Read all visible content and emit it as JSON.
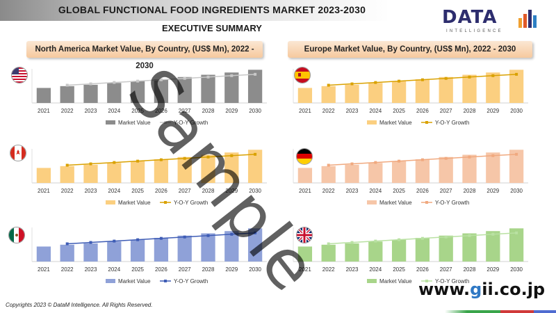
{
  "header": {
    "title": "GLOBAL FUNCTIONAL FOOD INGREDIENTS MARKET 2023-2030",
    "subtitle": "EXECUTIVE SUMMARY",
    "logo_text": "DATA",
    "logo_sub": "INTELLIGENCE",
    "left_panel_title": "North America Market Value, By Country, (US$ Mn), 2022 - 2030",
    "right_panel_title": "Europe Market Value, By Country, (US$ Mn), 2022 - 2030"
  },
  "watermark": "Sample",
  "site": {
    "prefix": "www.",
    "g": "g",
    "rest": "ii.co.jp"
  },
  "footer": {
    "copyright": "Copyrights 2023 © DataM Intelligence. All Rights Reserved."
  },
  "colors": {
    "us": {
      "bar": "#8c8c8c",
      "line": "#c8c8c8"
    },
    "ca": {
      "bar": "#fbcf80",
      "line": "#d9a100"
    },
    "mx": {
      "bar": "#8fa1d8",
      "line": "#3e5cb5"
    },
    "es": {
      "bar": "#fbcf80",
      "line": "#d9a100"
    },
    "de": {
      "bar": "#f6c6a8",
      "line": "#f0a97f"
    },
    "uk": {
      "bar": "#a8d58a",
      "line": "#b9e1a2"
    }
  },
  "chart_data": [
    {
      "id": "us",
      "flag": "usa-flag-icon",
      "type": "bar",
      "categories": [
        "2021",
        "2022",
        "2023",
        "2024",
        "2025",
        "2026",
        "2027",
        "2028",
        "2029",
        "2030"
      ],
      "series": [
        {
          "name": "Market Value",
          "type": "bar",
          "values": [
            33,
            37,
            40,
            44,
            48,
            52,
            57,
            62,
            67,
            73
          ]
        },
        {
          "name": "Y-O-Y Growth",
          "type": "line",
          "values": [
            null,
            0.52,
            0.56,
            0.6,
            0.64,
            0.68,
            0.72,
            0.76,
            0.8,
            0.84
          ]
        }
      ],
      "legend": [
        "Market Value",
        "Y-O-Y Growth"
      ]
    },
    {
      "id": "es",
      "flag": "spain-flag-icon",
      "type": "bar",
      "categories": [
        "2021",
        "2022",
        "2023",
        "2024",
        "2025",
        "2026",
        "2027",
        "2028",
        "2029",
        "2030"
      ],
      "series": [
        {
          "name": "Market Value",
          "type": "bar",
          "values": [
            33,
            37,
            40,
            44,
            48,
            52,
            57,
            62,
            67,
            73
          ]
        },
        {
          "name": "Y-O-Y Growth",
          "type": "line",
          "values": [
            null,
            0.52,
            0.56,
            0.6,
            0.64,
            0.68,
            0.72,
            0.76,
            0.8,
            0.84
          ]
        }
      ],
      "legend": [
        "Market Value",
        "Y-O-Y Growth"
      ]
    },
    {
      "id": "ca",
      "flag": "canada-flag-icon",
      "type": "bar",
      "categories": [
        "2021",
        "2022",
        "2023",
        "2024",
        "2025",
        "2026",
        "2027",
        "2028",
        "2029",
        "2030"
      ],
      "series": [
        {
          "name": "Market Value",
          "type": "bar",
          "values": [
            33,
            37,
            40,
            44,
            48,
            52,
            57,
            62,
            67,
            73
          ]
        },
        {
          "name": "Y-O-Y Growth",
          "type": "line",
          "values": [
            null,
            0.52,
            0.56,
            0.6,
            0.64,
            0.68,
            0.72,
            0.76,
            0.8,
            0.84
          ]
        }
      ],
      "legend": [
        "Market Value",
        "Y-O-Y Growth"
      ]
    },
    {
      "id": "de",
      "flag": "germany-flag-icon",
      "type": "bar",
      "categories": [
        "2021",
        "2022",
        "2023",
        "2024",
        "2025",
        "2026",
        "2027",
        "2028",
        "2029",
        "2030"
      ],
      "series": [
        {
          "name": "Market Value",
          "type": "bar",
          "values": [
            33,
            37,
            40,
            44,
            48,
            52,
            57,
            62,
            67,
            73
          ]
        },
        {
          "name": "Y-O-Y Growth",
          "type": "line",
          "values": [
            null,
            0.52,
            0.56,
            0.6,
            0.64,
            0.68,
            0.72,
            0.76,
            0.8,
            0.84
          ]
        }
      ],
      "legend": [
        "Market Value",
        "Y-O-Y Growth"
      ]
    },
    {
      "id": "mx",
      "flag": "mexico-flag-icon",
      "type": "bar",
      "categories": [
        "2021",
        "2022",
        "2023",
        "2024",
        "2025",
        "2026",
        "2027",
        "2028",
        "2029",
        "2030"
      ],
      "series": [
        {
          "name": "Market Value",
          "type": "bar",
          "values": [
            33,
            37,
            40,
            44,
            48,
            52,
            57,
            62,
            67,
            73
          ]
        },
        {
          "name": "Y-O-Y Growth",
          "type": "line",
          "values": [
            null,
            0.52,
            0.56,
            0.6,
            0.64,
            0.68,
            0.72,
            0.76,
            0.8,
            0.84
          ]
        }
      ],
      "legend": [
        "Market Value",
        "Y-O-Y Growth"
      ]
    },
    {
      "id": "uk",
      "flag": "uk-flag-icon",
      "type": "bar",
      "categories": [
        "2021",
        "2022",
        "2023",
        "2024",
        "2025",
        "2026",
        "2027",
        "2028",
        "2029",
        "2030"
      ],
      "series": [
        {
          "name": "Market Value",
          "type": "bar",
          "values": [
            33,
            37,
            40,
            44,
            48,
            52,
            57,
            62,
            67,
            73
          ]
        },
        {
          "name": "Y-O-Y Growth",
          "type": "line",
          "values": [
            null,
            0.52,
            0.56,
            0.6,
            0.64,
            0.68,
            0.72,
            0.76,
            0.8,
            0.84
          ]
        }
      ],
      "legend": [
        "Market Value",
        "Y-O-Y Growth"
      ]
    }
  ]
}
